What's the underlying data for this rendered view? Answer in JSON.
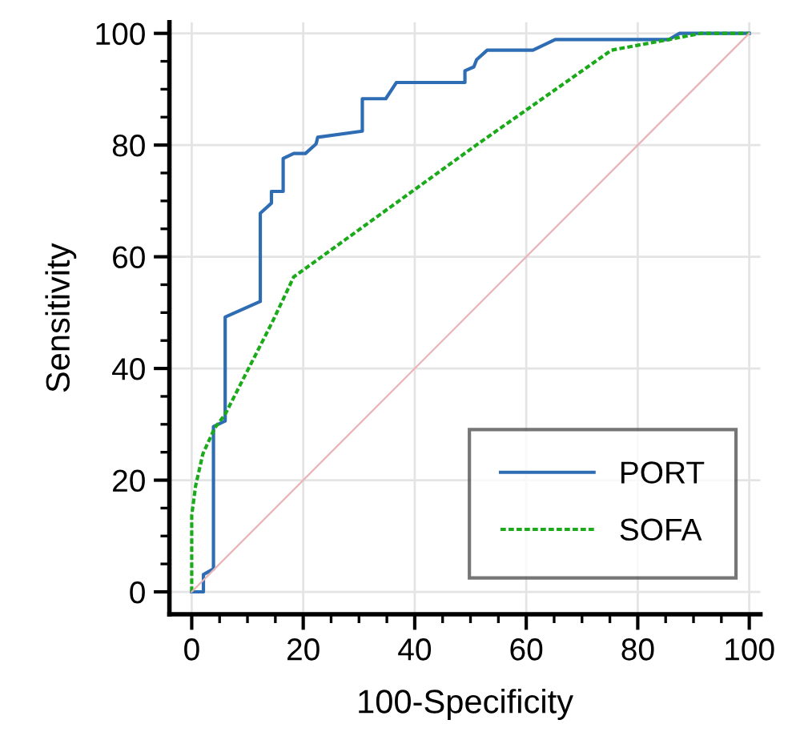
{
  "chart_data": {
    "type": "line",
    "xlabel": "100-Specificity",
    "ylabel": "Sensitivity",
    "xlim": [
      -4,
      102
    ],
    "ylim": [
      -4,
      102
    ],
    "xticks": [
      0,
      20,
      40,
      60,
      80,
      100
    ],
    "yticks": [
      0,
      20,
      40,
      60,
      80,
      100
    ],
    "grid": true,
    "legend": "bottom right",
    "marker": "none",
    "series": [
      {
        "name": "PORT",
        "color": "#2e6db4",
        "line_style": "solid",
        "x": [
          0,
          2.1,
          2.1,
          3.9,
          3.9,
          6.0,
          6.0,
          12.3,
          12.3,
          14.3,
          14.3,
          16.4,
          16.4,
          18.3,
          20.4,
          22.3,
          22.6,
          30.6,
          30.6,
          34.8,
          36.7,
          49.0,
          49.0,
          50.6,
          51.1,
          53.0,
          61.2,
          65.2,
          85.6,
          87.5,
          100
        ],
        "values": [
          0,
          0,
          3.1,
          4.1,
          29.6,
          30.6,
          49.2,
          52.0,
          67.8,
          69.6,
          71.7,
          71.7,
          77.6,
          78.5,
          78.5,
          80.2,
          81.4,
          82.5,
          88.3,
          88.3,
          91.2,
          91.2,
          93.3,
          94.0,
          95.3,
          97.0,
          97.0,
          98.9,
          98.9,
          100,
          100
        ]
      },
      {
        "name": "SOFA",
        "color": "#1aaa1a",
        "line_style": "dashed",
        "x": [
          0,
          0,
          0.7,
          2.0,
          4.1,
          6.0,
          14.4,
          18.3,
          50.9,
          75.3,
          85.6,
          91.3,
          100
        ],
        "values": [
          0,
          13.7,
          19,
          24.7,
          29.3,
          31.8,
          48.2,
          56.4,
          79.9,
          97.0,
          98.9,
          100,
          100
        ]
      },
      {
        "color": "#e8b4b8",
        "line_style": "solid",
        "x": [
          0,
          100
        ],
        "values": [
          0,
          100
        ]
      }
    ]
  }
}
